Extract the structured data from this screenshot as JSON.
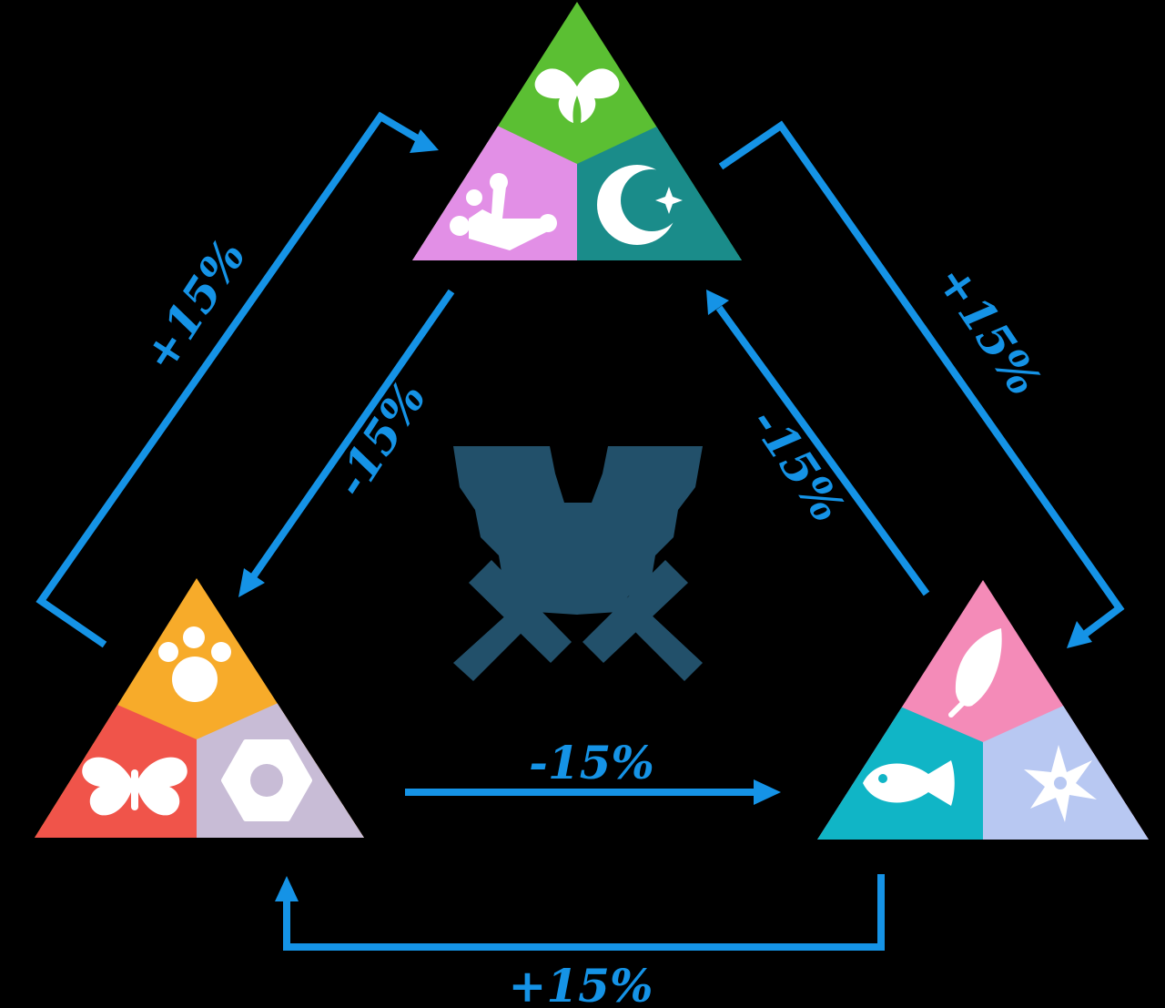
{
  "colors": {
    "background": "#000000",
    "arrow": "#1593e6",
    "center_emblem": "#22506a",
    "top_group": {
      "top": "#5bbf33",
      "left": "#e28fe6",
      "right": "#1a8c8a"
    },
    "left_group": {
      "top": "#f7ab2a",
      "left": "#f0544a",
      "right": "#c8bcd6"
    },
    "right_group": {
      "top": "#f48bb8",
      "left": "#10b5c6",
      "right": "#b8c8f2"
    }
  },
  "groups": {
    "top": {
      "icons": [
        "wings-icon",
        "crown-icon",
        "crescent-moon-icon"
      ]
    },
    "left": {
      "icons": [
        "paw-icon",
        "butterfly-icon",
        "hex-nut-icon"
      ]
    },
    "right": {
      "icons": [
        "feather-icon",
        "fish-icon",
        "snowflake-icon"
      ]
    }
  },
  "center": {
    "icon": "crossed-swords-wings-emblem-icon"
  },
  "relations": {
    "outer_left": {
      "label": "+15%"
    },
    "outer_right": {
      "label": "+15%"
    },
    "outer_bottom": {
      "label": "+15%"
    },
    "inner_left": {
      "label": "-15%"
    },
    "inner_right": {
      "label": "-15%"
    },
    "inner_bottom": {
      "label": "-15%"
    }
  }
}
